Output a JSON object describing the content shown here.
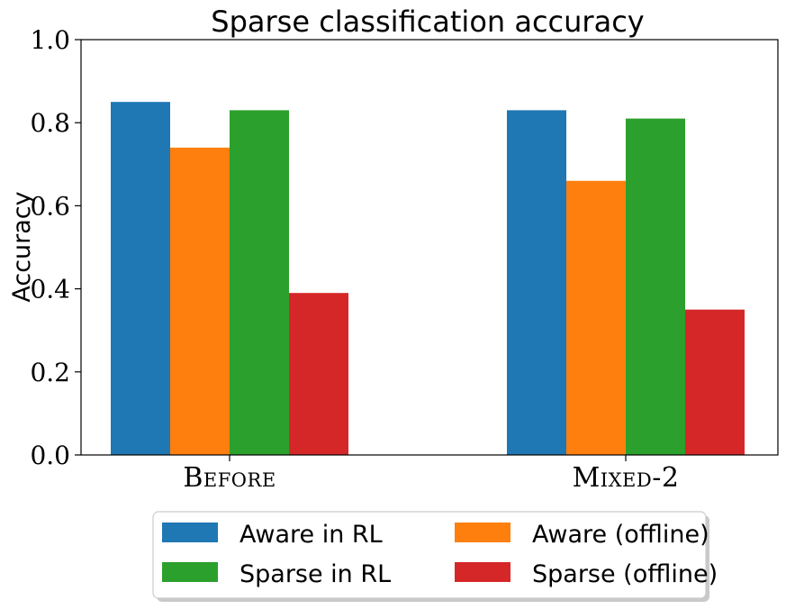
{
  "chart_data": {
    "type": "bar",
    "title": "Sparse classification accuracy",
    "xlabel": "",
    "ylabel": "Accuracy",
    "ylim": [
      0,
      1
    ],
    "yticks": [
      "0.0",
      "0.2",
      "0.4",
      "0.6",
      "0.8",
      "1.0"
    ],
    "categories": [
      "Before",
      "Mixed-2"
    ],
    "series": [
      {
        "name": "Aware in RL",
        "color": "#1f77b4",
        "values": [
          0.85,
          0.83
        ]
      },
      {
        "name": "Aware (offline)",
        "color": "#ff7f0e",
        "values": [
          0.74,
          0.66
        ]
      },
      {
        "name": "Sparse in RL",
        "color": "#2ca02c",
        "values": [
          0.83,
          0.81
        ]
      },
      {
        "name": "Sparse (offline)",
        "color": "#d62728",
        "values": [
          0.39,
          0.35
        ]
      }
    ],
    "legend": {
      "position": "bottom-center",
      "columns": 2,
      "order": [
        0,
        2,
        1,
        3
      ]
    },
    "grid": false
  }
}
